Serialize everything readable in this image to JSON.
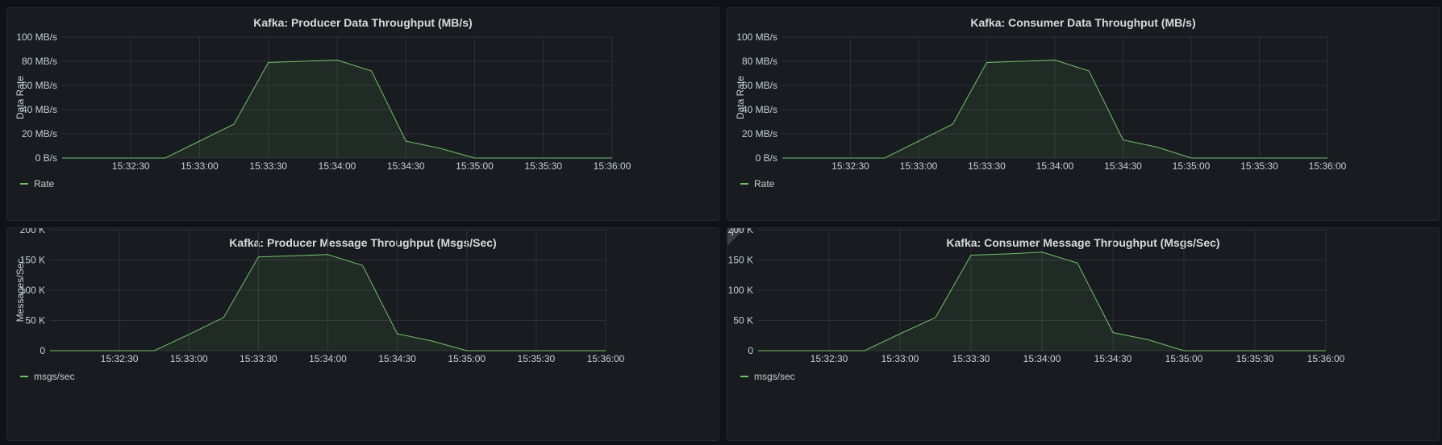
{
  "chart_data": [
    {
      "type": "area",
      "title": "Kafka: Producer Data Throughput (MB/s)",
      "ylabel": "Data Rate",
      "xlabel": "",
      "ylim": [
        0,
        100
      ],
      "yticks": [
        0,
        20,
        40,
        60,
        80,
        100
      ],
      "ytick_labels": [
        "0 B/s",
        "20 MB/s",
        "40 MB/s",
        "60 MB/s",
        "80 MB/s",
        "100 MB/s"
      ],
      "xlim": [
        "15:32:00",
        "15:36:00"
      ],
      "xtick_labels": [
        "15:32:30",
        "15:33:00",
        "15:33:30",
        "15:34:00",
        "15:34:30",
        "15:35:00",
        "15:35:30",
        "15:36:00"
      ],
      "grid": true,
      "legend_position": "bottom-left",
      "series": [
        {
          "name": "Rate",
          "color": "#73bf69",
          "x": [
            "15:32:00",
            "15:32:15",
            "15:32:30",
            "15:32:45",
            "15:33:00",
            "15:33:15",
            "15:33:30",
            "15:33:45",
            "15:34:00",
            "15:34:15",
            "15:34:30",
            "15:34:45",
            "15:35:00",
            "15:35:15",
            "15:35:30",
            "15:35:45",
            "15:36:00"
          ],
          "values": [
            0,
            0,
            0,
            0,
            14,
            28,
            79,
            80,
            81,
            72,
            14,
            8,
            0,
            0,
            0,
            0,
            0
          ]
        }
      ]
    },
    {
      "type": "area",
      "title": "Kafka: Consumer Data Throughput (MB/s)",
      "ylabel": "Data Rate",
      "xlabel": "",
      "ylim": [
        0,
        100
      ],
      "yticks": [
        0,
        20,
        40,
        60,
        80,
        100
      ],
      "ytick_labels": [
        "0 B/s",
        "20 MB/s",
        "40 MB/s",
        "60 MB/s",
        "80 MB/s",
        "100 MB/s"
      ],
      "xlim": [
        "15:32:00",
        "15:36:00"
      ],
      "xtick_labels": [
        "15:32:30",
        "15:33:00",
        "15:33:30",
        "15:34:00",
        "15:34:30",
        "15:35:00",
        "15:35:30",
        "15:36:00"
      ],
      "grid": true,
      "legend_position": "bottom-left",
      "series": [
        {
          "name": "Rate",
          "color": "#73bf69",
          "x": [
            "15:32:00",
            "15:32:15",
            "15:32:30",
            "15:32:45",
            "15:33:00",
            "15:33:15",
            "15:33:30",
            "15:33:45",
            "15:34:00",
            "15:34:15",
            "15:34:30",
            "15:34:45",
            "15:35:00",
            "15:35:15",
            "15:35:30",
            "15:35:45",
            "15:36:00"
          ],
          "values": [
            0,
            0,
            0,
            0,
            14,
            28,
            79,
            80,
            81,
            72,
            15,
            9,
            0,
            0,
            0,
            0,
            0
          ]
        }
      ]
    },
    {
      "type": "area",
      "title": "Kafka: Producer Message Throughput (Msgs/Sec)",
      "ylabel": "Messages/Sec",
      "xlabel": "",
      "ylim": [
        0,
        200000
      ],
      "yticks": [
        0,
        50000,
        100000,
        150000,
        200000
      ],
      "ytick_labels": [
        "0",
        "50 K",
        "100 K",
        "150 K",
        "200 K"
      ],
      "xlim": [
        "15:32:00",
        "15:36:00"
      ],
      "xtick_labels": [
        "15:32:30",
        "15:33:00",
        "15:33:30",
        "15:34:00",
        "15:34:30",
        "15:35:00",
        "15:35:30",
        "15:36:00"
      ],
      "grid": true,
      "legend_position": "bottom-left",
      "series": [
        {
          "name": "msgs/sec",
          "color": "#73bf69",
          "x": [
            "15:32:00",
            "15:32:15",
            "15:32:30",
            "15:32:45",
            "15:33:00",
            "15:33:15",
            "15:33:30",
            "15:33:45",
            "15:34:00",
            "15:34:15",
            "15:34:30",
            "15:34:45",
            "15:35:00",
            "15:35:15",
            "15:35:30",
            "15:35:45",
            "15:36:00"
          ],
          "values": [
            0,
            0,
            0,
            0,
            27000,
            55000,
            155000,
            157000,
            159000,
            141000,
            28000,
            16000,
            0,
            0,
            0,
            0,
            0
          ]
        }
      ]
    },
    {
      "type": "area",
      "title": "Kafka: Consumer Message Throughput (Msgs/Sec)",
      "ylabel": "",
      "xlabel": "",
      "ylim": [
        0,
        200000
      ],
      "yticks": [
        0,
        50000,
        100000,
        150000,
        200000
      ],
      "ytick_labels": [
        "0",
        "50 K",
        "100 K",
        "150 K",
        "200 K"
      ],
      "xlim": [
        "15:32:00",
        "15:36:00"
      ],
      "xtick_labels": [
        "15:32:30",
        "15:33:00",
        "15:33:30",
        "15:34:00",
        "15:34:30",
        "15:35:00",
        "15:35:30",
        "15:36:00"
      ],
      "grid": true,
      "legend_position": "bottom-left",
      "series": [
        {
          "name": "msgs/sec",
          "color": "#73bf69",
          "x": [
            "15:32:00",
            "15:32:15",
            "15:32:30",
            "15:32:45",
            "15:33:00",
            "15:33:15",
            "15:33:30",
            "15:33:45",
            "15:34:00",
            "15:34:15",
            "15:34:30",
            "15:34:45",
            "15:35:00",
            "15:35:15",
            "15:35:30",
            "15:35:45",
            "15:36:00"
          ],
          "values": [
            0,
            0,
            0,
            0,
            28000,
            55000,
            158000,
            160000,
            163000,
            145000,
            30000,
            18000,
            0,
            0,
            0,
            0,
            0
          ]
        }
      ]
    }
  ],
  "panels": [
    {
      "title": "Kafka: Producer Data Throughput (MB/s)"
    },
    {
      "title": "Kafka: Consumer Data Throughput (MB/s)"
    },
    {
      "title": "Kafka: Producer Message Throughput (Msgs/Sec)"
    },
    {
      "title": "Kafka: Consumer Message Throughput (Msgs/Sec)",
      "info_icon": "i"
    }
  ],
  "theme": {
    "background": "#111217",
    "panel": "#181b1f",
    "grid": "#2c3036",
    "text": "#c7d0d9",
    "series": "#73bf69"
  }
}
